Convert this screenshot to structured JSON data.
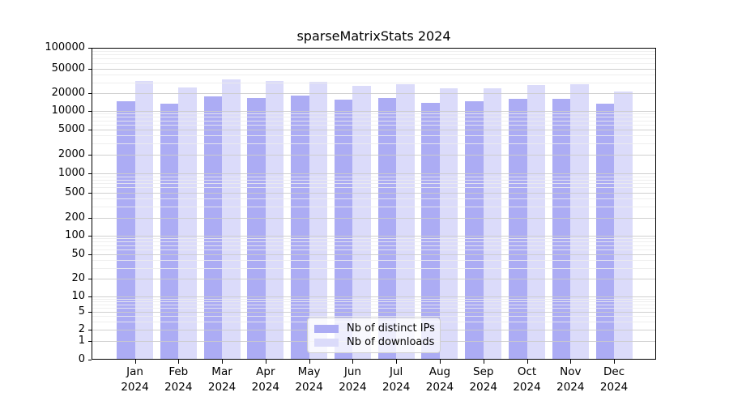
{
  "chart_data": {
    "type": "bar",
    "title": "sparseMatrixStats 2024",
    "categories": [
      "Jan",
      "Feb",
      "Mar",
      "Apr",
      "May",
      "Jun",
      "Jul",
      "Aug",
      "Sep",
      "Oct",
      "Nov",
      "Dec"
    ],
    "x_tick_second_line": "2024",
    "series": [
      {
        "name": "Nb of distinct IPs",
        "color": "#acacf4",
        "values": [
          14700,
          13200,
          17400,
          16400,
          17900,
          15400,
          16600,
          13800,
          14700,
          16000,
          16000,
          13200
        ]
      },
      {
        "name": "Nb of downloads",
        "color": "#dbdbfa",
        "values": [
          31600,
          24600,
          33600,
          31900,
          31000,
          26500,
          28000,
          23800,
          24200,
          27200,
          28000,
          21300
        ]
      }
    ],
    "yscale": "log (symlog with 0 baseline)",
    "y_ticks": [
      0,
      1,
      2,
      5,
      10,
      20,
      50,
      100,
      200,
      500,
      1000,
      2000,
      5000,
      10000,
      20000,
      50000,
      100000
    ],
    "ylim": [
      0,
      100000
    ],
    "xlabel": "",
    "ylabel": "",
    "grid": true,
    "legend_position": "lower center"
  }
}
